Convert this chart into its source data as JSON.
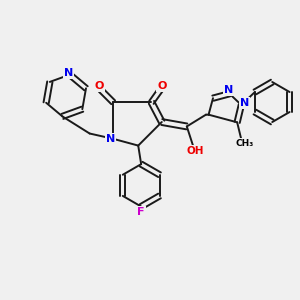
{
  "bg_color": "#f0f0f0",
  "bond_color": "#1a1a1a",
  "bond_width": 1.4,
  "N_color": "#0000ee",
  "O_color": "#ee0000",
  "F_color": "#cc00cc",
  "H_color": "#008080",
  "figsize": [
    3.0,
    3.0
  ],
  "dpi": 100,
  "xlim": [
    0,
    10
  ],
  "ylim": [
    0,
    10
  ]
}
